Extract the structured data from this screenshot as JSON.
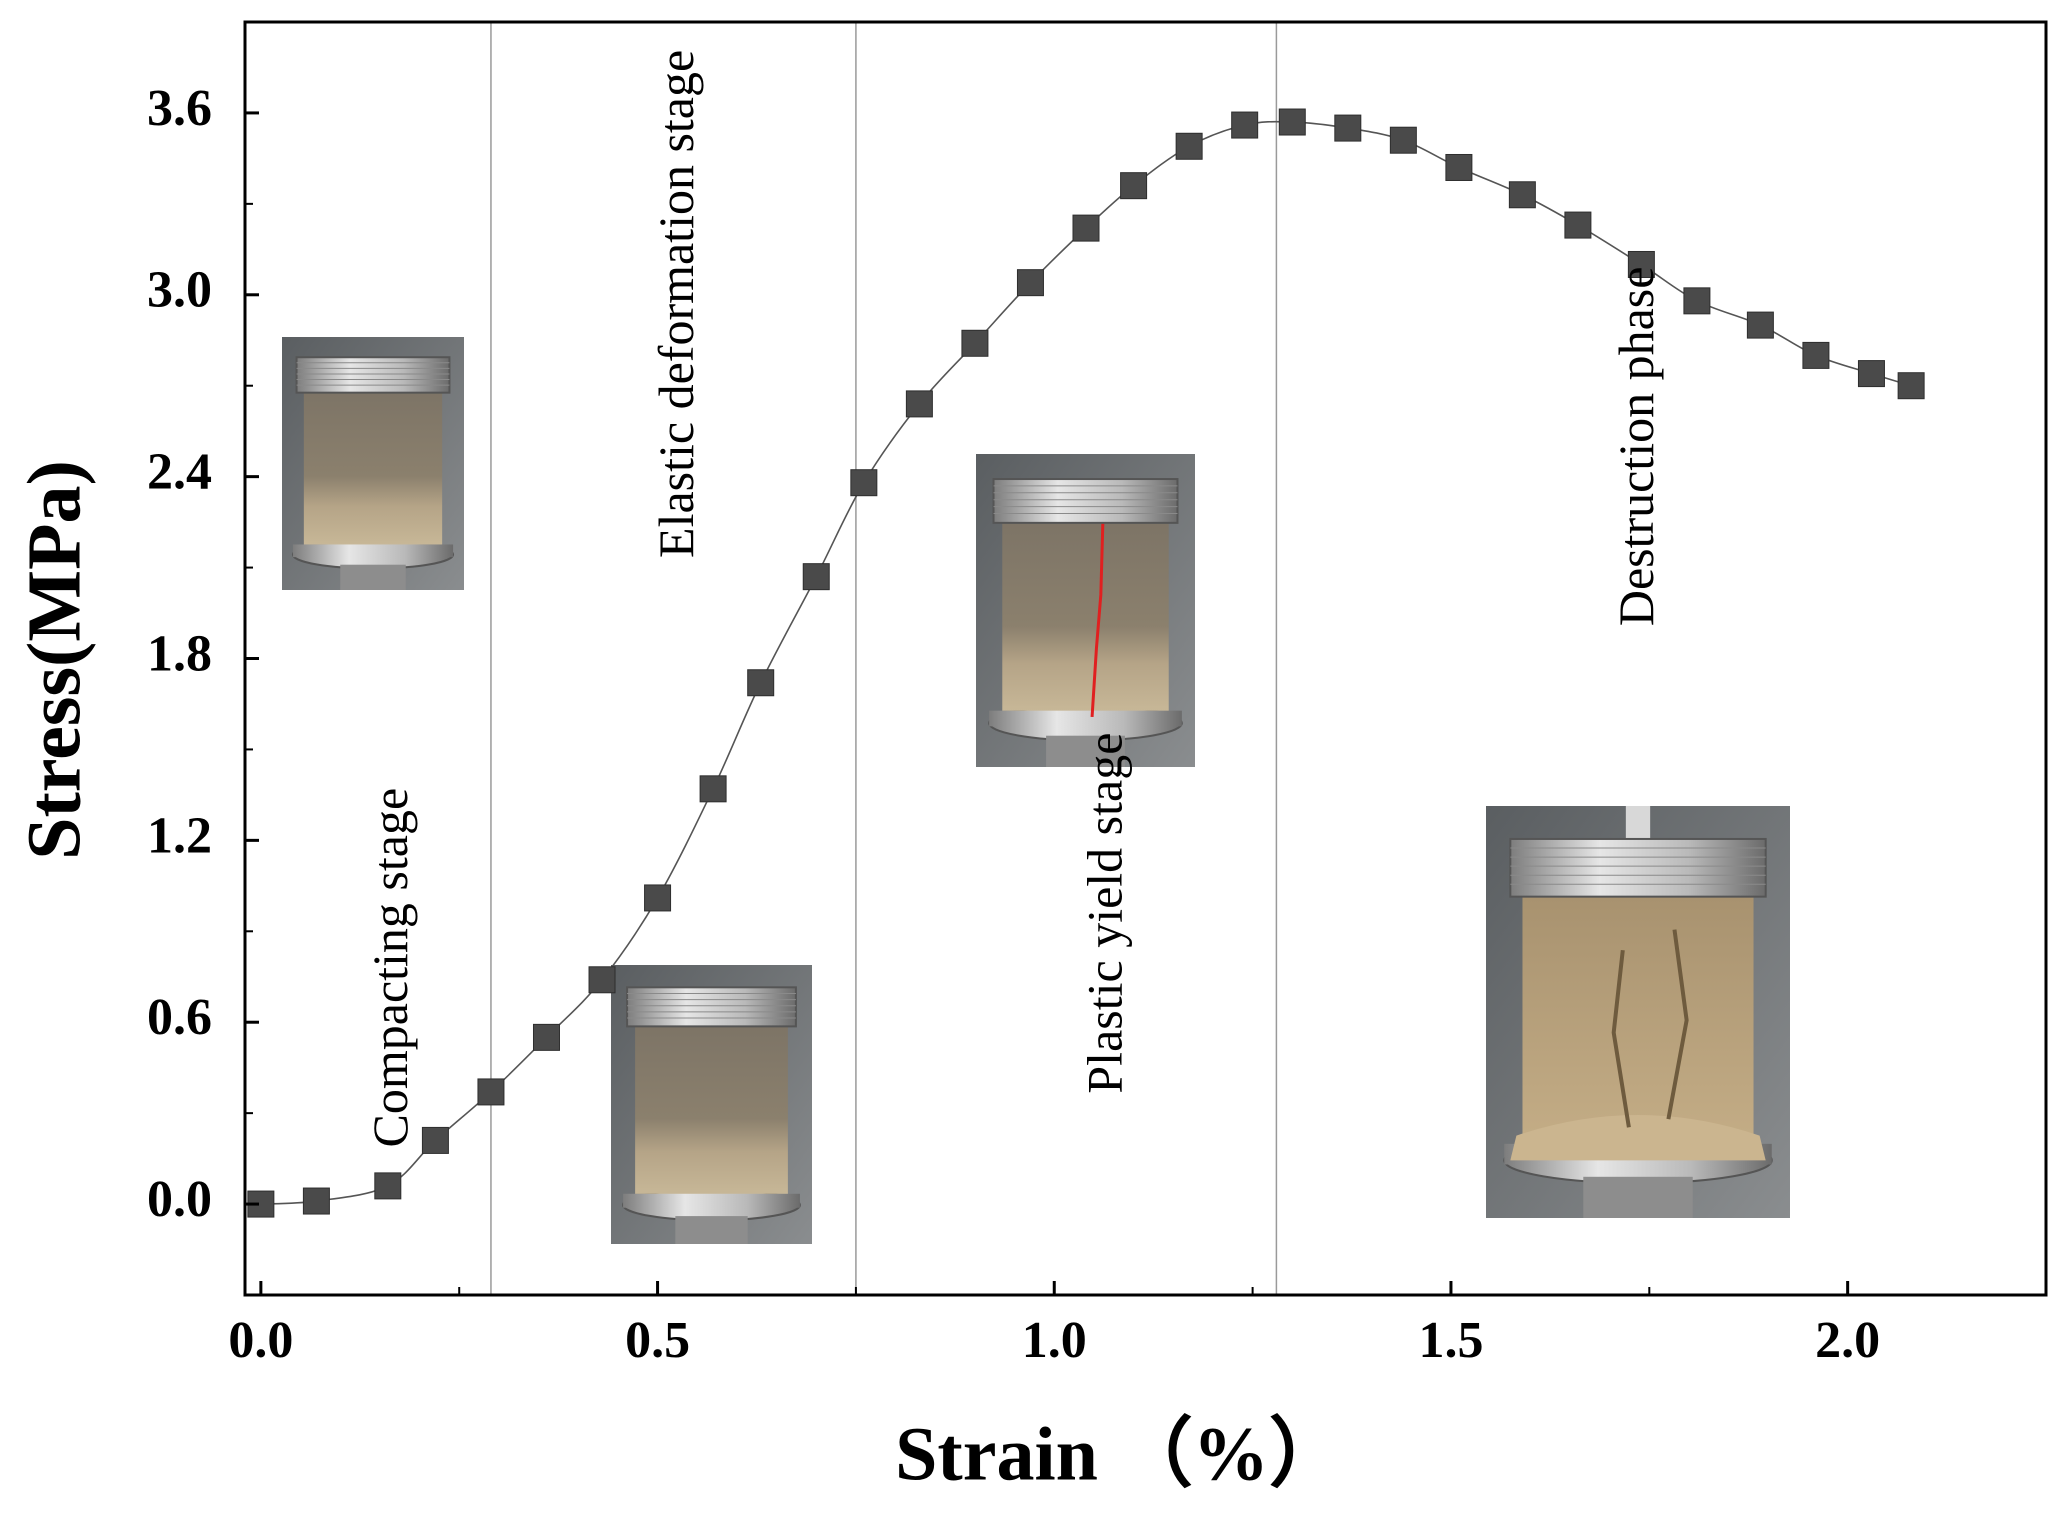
{
  "chart_data": {
    "type": "line",
    "title": "",
    "xlabel": "Strain （%）",
    "ylabel": "Stress(MPa)",
    "xlim": [
      -0.02,
      2.25
    ],
    "ylim": [
      -0.3,
      3.9
    ],
    "xticks": [
      0.0,
      0.5,
      1.0,
      1.5,
      2.0
    ],
    "xtick_labels": [
      "0.0",
      "0.5",
      "1.0",
      "1.5",
      "2.0"
    ],
    "yticks": [
      0.0,
      0.6,
      1.2,
      1.8,
      2.4,
      3.0,
      3.6
    ],
    "ytick_labels": [
      "0.0",
      "0.6",
      "1.2",
      "1.8",
      "2.4",
      "3.0",
      "3.6"
    ],
    "grid": false,
    "series": [
      {
        "name": "Stress-strain curve",
        "marker": "square",
        "color": "#4a4a4a",
        "x": [
          0.0,
          0.07,
          0.16,
          0.22,
          0.29,
          0.36,
          0.43,
          0.5,
          0.57,
          0.63,
          0.7,
          0.76,
          0.83,
          0.9,
          0.97,
          1.04,
          1.1,
          1.17,
          1.24,
          1.3,
          1.37,
          1.44,
          1.51,
          1.59,
          1.66,
          1.74,
          1.81,
          1.89,
          1.96,
          2.03,
          2.08
        ],
        "y": [
          0.0,
          0.01,
          0.06,
          0.21,
          0.37,
          0.55,
          0.74,
          1.01,
          1.37,
          1.72,
          2.07,
          2.38,
          2.64,
          2.84,
          3.04,
          3.22,
          3.36,
          3.49,
          3.56,
          3.57,
          3.55,
          3.51,
          3.42,
          3.33,
          3.23,
          3.1,
          2.98,
          2.9,
          2.8,
          2.74,
          2.7
        ]
      }
    ],
    "stage_boundaries": [
      0.29,
      0.75,
      1.28
    ],
    "stage_labels": [
      {
        "text": "Compacting stage",
        "x": 0.17,
        "y": 0.78
      },
      {
        "text": "Elastic deformation stage",
        "x": 0.53,
        "y": 2.97
      },
      {
        "text": "Plastic yield stage",
        "x": 1.07,
        "y": 0.96
      },
      {
        "text": "Destruction phase",
        "x": 1.74,
        "y": 2.5
      }
    ],
    "annotations": [
      {
        "type": "photo",
        "description": "specimen",
        "stage": "Compacting stage"
      },
      {
        "type": "photo",
        "description": "specimen",
        "stage": "Elastic deformation stage"
      },
      {
        "type": "photo",
        "description": "specimen",
        "stage": "Plastic yield stage"
      },
      {
        "type": "photo",
        "description": "specimen",
        "stage": "Destruction phase"
      }
    ]
  }
}
